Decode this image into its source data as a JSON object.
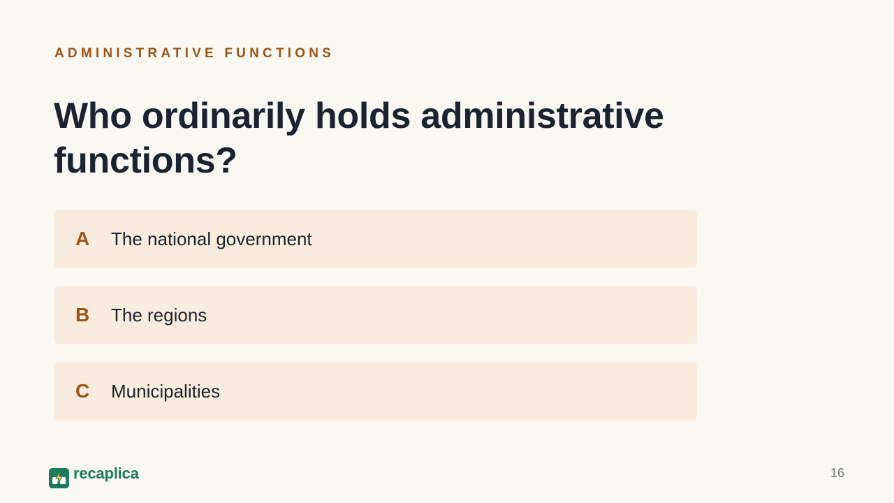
{
  "slide": {
    "eyebrow": "ADMINISTRATIVE FUNCTIONS",
    "question": "Who ordinarily holds administrative functions?",
    "options": [
      {
        "letter": "A",
        "text": "The national government"
      },
      {
        "letter": "B",
        "text": "The regions"
      },
      {
        "letter": "C",
        "text": "Municipalities"
      }
    ]
  },
  "footer": {
    "brand": "recaplica",
    "brand_icon": "recaplica-logo-icon",
    "page_number": "16"
  },
  "colors": {
    "background": "#f9f7f2",
    "accent": "#9a5518",
    "heading": "#1b2230",
    "option_background": "#f7ecdd",
    "brand": "#1d7a5a",
    "page_number": "#6b7280"
  }
}
